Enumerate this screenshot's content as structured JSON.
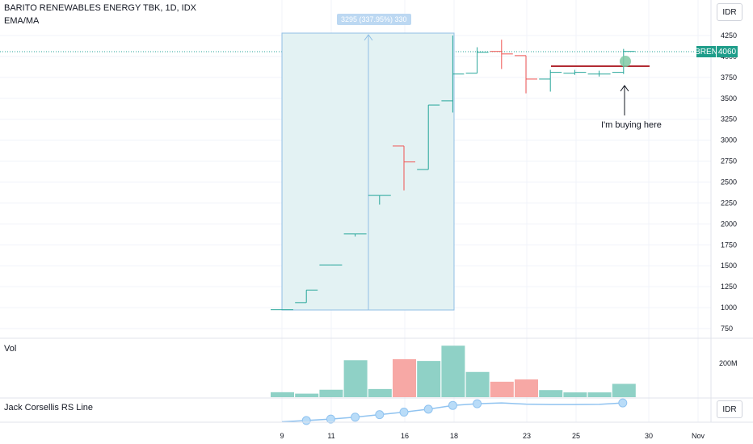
{
  "header": {
    "title": "BARITO RENEWABLES ENERGY TBK, 1D, IDX",
    "indicator": "EMA/MA",
    "currency": "IDR"
  },
  "volume_pane": {
    "label": "Vol",
    "axis_label": "200M"
  },
  "rs_pane": {
    "label": "Jack Corsellis RS Line",
    "currency": "IDR"
  },
  "price_tag": {
    "symbol": "BREN",
    "value": "4060"
  },
  "measure_label": "3295 (337.95%) 330",
  "annotation": "I'm buying here",
  "colors": {
    "up": "#26a69a",
    "down": "#ef5350",
    "vol_up": "#8fd1c6",
    "vol_down": "#f7a8a5",
    "measure_fill": "#e3f2f3",
    "measure_line": "#90bfe6",
    "level_line": "#b22b33",
    "rs_line": "#90c3f0"
  },
  "chart_data": {
    "type": "ohlc",
    "y_ticks": [
      "750",
      "1000",
      "1250",
      "1500",
      "1750",
      "2000",
      "2250",
      "2500",
      "2750",
      "3000",
      "3250",
      "3500",
      "3750",
      "4000",
      "4250"
    ],
    "x_ticks": [
      "9",
      "11",
      "16",
      "18",
      "23",
      "25",
      "30",
      "Nov"
    ],
    "ylim": [
      750,
      4250
    ],
    "bars": [
      {
        "o": 975,
        "h": 975,
        "l": 975,
        "c": 975,
        "up": true
      },
      {
        "o": 1060,
        "h": 1210,
        "l": 1060,
        "c": 1210,
        "up": true
      },
      {
        "o": 1510,
        "h": 1510,
        "l": 1510,
        "c": 1510,
        "up": true
      },
      {
        "o": 1880,
        "h": 1880,
        "l": 1850,
        "c": 1880,
        "up": true
      },
      {
        "o": 2340,
        "h": 2340,
        "l": 2230,
        "c": 2340,
        "up": true
      },
      {
        "o": 2930,
        "h": 2930,
        "l": 2400,
        "c": 2740,
        "up": false
      },
      {
        "o": 2650,
        "h": 3420,
        "l": 2650,
        "c": 3420,
        "up": true
      },
      {
        "o": 3470,
        "h": 4250,
        "l": 3330,
        "c": 3790,
        "up": true
      },
      {
        "o": 3800,
        "h": 4110,
        "l": 3800,
        "c": 4050,
        "up": true
      },
      {
        "o": 4060,
        "h": 4200,
        "l": 3850,
        "c": 4030,
        "up": false
      },
      {
        "o": 4010,
        "h": 4010,
        "l": 3560,
        "c": 3730,
        "up": false
      },
      {
        "o": 3730,
        "h": 3840,
        "l": 3580,
        "c": 3810,
        "up": true
      },
      {
        "o": 3800,
        "h": 3840,
        "l": 3780,
        "c": 3810,
        "up": true
      },
      {
        "o": 3790,
        "h": 3830,
        "l": 3760,
        "c": 3790,
        "up": true
      },
      {
        "o": 3810,
        "h": 4090,
        "l": 3790,
        "c": 4060,
        "up": true
      }
    ],
    "volume": [
      {
        "v": 0.28,
        "up": true
      },
      {
        "v": 0.2,
        "up": true
      },
      {
        "v": 0.42,
        "up": true
      },
      {
        "v": 2.08,
        "up": true
      },
      {
        "v": 0.46,
        "up": true
      },
      {
        "v": 2.14,
        "up": false
      },
      {
        "v": 2.04,
        "up": true
      },
      {
        "v": 2.9,
        "up": true
      },
      {
        "v": 1.42,
        "up": true
      },
      {
        "v": 0.87,
        "up": false
      },
      {
        "v": 1.0,
        "up": false
      },
      {
        "v": 0.4,
        "up": true
      },
      {
        "v": 0.27,
        "up": true
      },
      {
        "v": 0.27,
        "up": true
      },
      {
        "v": 0.75,
        "up": true
      }
    ],
    "rs_line": [
      0.02,
      0.08,
      0.15,
      0.24,
      0.36,
      0.48,
      0.62,
      0.8,
      0.88,
      0.92,
      0.86,
      0.84,
      0.84,
      0.85,
      0.92
    ]
  }
}
